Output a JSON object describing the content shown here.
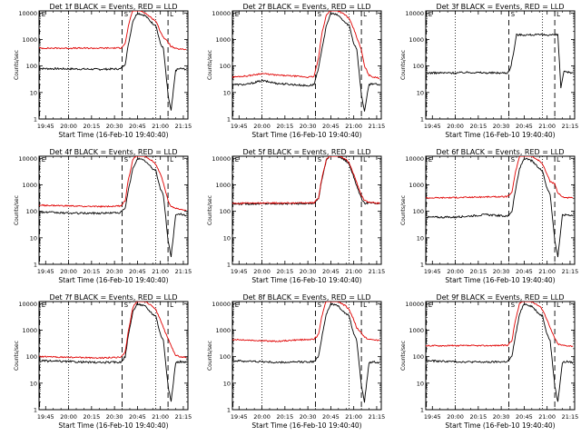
{
  "colors": {
    "events": "#000000",
    "lld": "#e00000",
    "frame": "#000000"
  },
  "chart_data": [
    {
      "type": "line",
      "title": "Det 1f BLACK = Events, RED = LLD",
      "xlabel": "Start Time (16-Feb-10 19:40:40)",
      "ylabel": "Counts/sec",
      "ylog": true,
      "ylim": [
        1,
        12000
      ],
      "xticks": [
        "19:45",
        "20:00",
        "20:15",
        "20:30",
        "20:45",
        "21:00",
        "21:15"
      ],
      "yticks": [
        "1",
        "10",
        "100",
        "1000",
        "10000"
      ],
      "markers": [
        "E",
        "S",
        "L"
      ],
      "series": [
        {
          "name": "BLACK",
          "x": [
            "19:40",
            "20:00",
            "20:20",
            "20:34",
            "20:37",
            "20:39",
            "20:42",
            "20:45",
            "20:50",
            "20:55",
            "20:57",
            "21:00",
            "21:02",
            "21:05",
            "21:07",
            "21:10",
            "21:13",
            "21:17"
          ],
          "y": [
            80,
            78,
            75,
            78,
            120,
            600,
            5000,
            10000,
            8000,
            4000,
            3500,
            700,
            450,
            8,
            2,
            70,
            80,
            75
          ]
        },
        {
          "name": "RED",
          "x": [
            "19:40",
            "20:00",
            "20:20",
            "20:34",
            "20:37",
            "20:39",
            "20:42",
            "20:45",
            "20:50",
            "20:55",
            "20:57",
            "21:00",
            "21:02",
            "21:05",
            "21:07",
            "21:10",
            "21:13",
            "21:17"
          ],
          "y": [
            470,
            470,
            470,
            480,
            700,
            3000,
            14000,
            14000,
            10000,
            6000,
            5000,
            2000,
            1200,
            800,
            550,
            450,
            430,
            420
          ]
        }
      ]
    },
    {
      "type": "line",
      "title": "Det 2f BLACK = Events, RED = LLD",
      "xlabel": "Start Time (16-Feb-10 19:40:40)",
      "ylabel": "Counts/sec",
      "ylog": true,
      "ylim": [
        1,
        12000
      ],
      "xticks": [
        "19:45",
        "20:00",
        "20:15",
        "20:30",
        "20:45",
        "21:00",
        "21:15"
      ],
      "yticks": [
        "1",
        "10",
        "100",
        "1000",
        "10000"
      ],
      "markers": [
        "E",
        "S",
        "L"
      ],
      "series": [
        {
          "name": "BLACK",
          "x": [
            "19:40",
            "19:50",
            "20:00",
            "20:10",
            "20:20",
            "20:30",
            "20:34",
            "20:37",
            "20:39",
            "20:42",
            "20:45",
            "20:50",
            "20:55",
            "20:57",
            "21:00",
            "21:02",
            "21:05",
            "21:07",
            "21:10",
            "21:13",
            "21:17"
          ],
          "y": [
            20,
            20,
            28,
            22,
            20,
            18,
            20,
            80,
            400,
            3000,
            10000,
            8000,
            4000,
            3500,
            700,
            450,
            8,
            2,
            20,
            22,
            18
          ]
        },
        {
          "name": "RED",
          "x": [
            "19:40",
            "19:50",
            "20:00",
            "20:10",
            "20:20",
            "20:30",
            "20:34",
            "20:37",
            "20:39",
            "20:42",
            "20:45",
            "20:50",
            "20:55",
            "20:57",
            "21:00",
            "21:02",
            "21:05",
            "21:07",
            "21:10",
            "21:13",
            "21:17"
          ],
          "y": [
            38,
            42,
            52,
            45,
            42,
            38,
            40,
            200,
            1500,
            8000,
            14000,
            12000,
            8000,
            6000,
            2500,
            1200,
            400,
            100,
            45,
            38,
            35
          ]
        }
      ]
    },
    {
      "type": "line",
      "title": "Det 3f BLACK = Events, RED = LLD",
      "xlabel": "Start Time (16-Feb-10 19:40:40)",
      "ylabel": "Counts/sec",
      "ylog": true,
      "ylim": [
        1,
        12000
      ],
      "xticks": [
        "19:45",
        "20:00",
        "20:15",
        "20:30",
        "20:45",
        "21:00",
        "21:15"
      ],
      "yticks": [
        "1",
        "10",
        "100",
        "1000",
        "10000"
      ],
      "markers": [
        "E",
        "S",
        "L"
      ],
      "series": [
        {
          "name": "BLACK",
          "x": [
            "19:40",
            "20:00",
            "20:10",
            "20:20",
            "20:34",
            "20:36",
            "20:38",
            "20:40",
            "21:07",
            "21:09",
            "21:11",
            "21:17"
          ],
          "y": [
            55,
            55,
            58,
            55,
            55,
            80,
            300,
            1500,
            1500,
            15,
            60,
            55
          ]
        }
      ]
    },
    {
      "type": "line",
      "title": "Det 4f BLACK = Events, RED = LLD",
      "xlabel": "Start Time (16-Feb-10 19:40:40)",
      "ylabel": "Counts/sec",
      "ylog": true,
      "ylim": [
        1,
        12000
      ],
      "xticks": [
        "19:45",
        "20:00",
        "20:15",
        "20:30",
        "20:45",
        "21:00",
        "21:15"
      ],
      "yticks": [
        "1",
        "10",
        "100",
        "1000",
        "10000"
      ],
      "markers": [
        "E",
        "S",
        "L"
      ],
      "series": [
        {
          "name": "BLACK",
          "x": [
            "19:40",
            "20:00",
            "20:20",
            "20:34",
            "20:37",
            "20:39",
            "20:42",
            "20:45",
            "20:50",
            "20:55",
            "20:57",
            "21:00",
            "21:02",
            "21:05",
            "21:07",
            "21:10",
            "21:13",
            "21:17"
          ],
          "y": [
            95,
            85,
            85,
            90,
            130,
            600,
            4000,
            10000,
            8000,
            4000,
            3500,
            700,
            400,
            8,
            2,
            70,
            80,
            70
          ]
        },
        {
          "name": "RED",
          "x": [
            "19:40",
            "20:00",
            "20:20",
            "20:34",
            "20:37",
            "20:39",
            "20:42",
            "20:45",
            "20:50",
            "20:55",
            "20:57",
            "21:00",
            "21:02",
            "21:05",
            "21:07",
            "21:10",
            "21:13",
            "21:17"
          ],
          "y": [
            170,
            160,
            150,
            160,
            250,
            1500,
            9000,
            14000,
            12000,
            8000,
            6000,
            2500,
            1200,
            250,
            150,
            130,
            120,
            110
          ]
        }
      ]
    },
    {
      "type": "line",
      "title": "Det 5f BLACK = Events, RED = LLD",
      "xlabel": "Start Time (16-Feb-10 19:40:40)",
      "ylabel": "Counts/sec",
      "ylog": true,
      "ylim": [
        1,
        12000
      ],
      "xticks": [
        "19:45",
        "20:00",
        "20:15",
        "20:30",
        "20:45",
        "21:00",
        "21:15"
      ],
      "yticks": [
        "1",
        "10",
        "100",
        "1000",
        "10000"
      ],
      "markers": [
        "E",
        "S",
        "L"
      ],
      "series": [
        {
          "name": "BLACK",
          "x": [
            "19:40",
            "20:00",
            "20:20",
            "20:34",
            "20:37",
            "20:39",
            "20:42",
            "20:45",
            "20:50",
            "20:55",
            "20:57",
            "21:00",
            "21:02",
            "21:05",
            "21:07",
            "21:10",
            "21:13",
            "21:17"
          ],
          "y": [
            190,
            195,
            195,
            200,
            300,
            1500,
            8000,
            14000,
            12000,
            8000,
            6000,
            2000,
            900,
            300,
            200,
            210,
            200,
            190
          ]
        },
        {
          "name": "RED",
          "x": [
            "19:40",
            "20:00",
            "20:20",
            "20:34",
            "20:37",
            "20:39",
            "20:42",
            "20:45",
            "20:50",
            "20:55",
            "20:57",
            "21:00",
            "21:02",
            "21:05",
            "21:07",
            "21:10",
            "21:13",
            "21:17"
          ],
          "y": [
            200,
            205,
            205,
            210,
            320,
            1600,
            9000,
            14000,
            13000,
            9000,
            6500,
            2500,
            1200,
            400,
            250,
            220,
            210,
            200
          ]
        }
      ]
    },
    {
      "type": "line",
      "title": "Det 6f BLACK = Events, RED = LLD",
      "xlabel": "Start Time (16-Feb-10 19:40:40)",
      "ylabel": "Counts/sec",
      "ylog": true,
      "ylim": [
        1,
        12000
      ],
      "xticks": [
        "19:45",
        "20:00",
        "20:15",
        "20:30",
        "20:45",
        "21:00",
        "21:15"
      ],
      "yticks": [
        "1",
        "10",
        "100",
        "1000",
        "10000"
      ],
      "markers": [
        "E",
        "S",
        "L"
      ],
      "series": [
        {
          "name": "BLACK",
          "x": [
            "19:40",
            "20:00",
            "20:20",
            "20:34",
            "20:37",
            "20:39",
            "20:42",
            "20:45",
            "20:50",
            "20:55",
            "20:57",
            "21:00",
            "21:02",
            "21:05",
            "21:07",
            "21:10",
            "21:13",
            "21:17"
          ],
          "y": [
            60,
            60,
            75,
            65,
            100,
            500,
            4000,
            10000,
            8000,
            4000,
            3500,
            700,
            450,
            8,
            2,
            70,
            75,
            70
          ]
        },
        {
          "name": "RED",
          "x": [
            "19:40",
            "20:00",
            "20:20",
            "20:34",
            "20:37",
            "20:39",
            "20:42",
            "20:45",
            "20:50",
            "20:55",
            "20:57",
            "21:00",
            "21:02",
            "21:05",
            "21:07",
            "21:10",
            "21:13",
            "21:17"
          ],
          "y": [
            320,
            330,
            350,
            360,
            500,
            2500,
            12000,
            14000,
            12000,
            8000,
            6000,
            2500,
            1300,
            1100,
            500,
            350,
            330,
            320
          ]
        }
      ]
    },
    {
      "type": "line",
      "title": "Det 7f BLACK = Events, RED = LLD",
      "xlabel": "Start Time (16-Feb-10 19:40:40)",
      "ylabel": "Counts/sec",
      "ylog": true,
      "ylim": [
        1,
        12000
      ],
      "xticks": [
        "19:45",
        "20:00",
        "20:15",
        "20:30",
        "20:45",
        "21:00",
        "21:15"
      ],
      "yticks": [
        "1",
        "10",
        "100",
        "1000",
        "10000"
      ],
      "markers": [
        "E",
        "S",
        "L"
      ],
      "series": [
        {
          "name": "BLACK",
          "x": [
            "19:40",
            "20:00",
            "20:20",
            "20:34",
            "20:37",
            "20:39",
            "20:42",
            "20:45",
            "20:50",
            "20:55",
            "20:57",
            "21:00",
            "21:02",
            "21:05",
            "21:07",
            "21:10",
            "21:13",
            "21:17"
          ],
          "y": [
            70,
            65,
            60,
            62,
            100,
            600,
            5000,
            10000,
            8000,
            4000,
            3500,
            700,
            400,
            8,
            2,
            60,
            65,
            60
          ]
        },
        {
          "name": "RED",
          "x": [
            "19:40",
            "20:00",
            "20:20",
            "20:34",
            "20:37",
            "20:39",
            "20:42",
            "20:45",
            "20:50",
            "20:55",
            "20:57",
            "21:00",
            "21:02",
            "21:05",
            "21:07",
            "21:10",
            "21:13",
            "21:17"
          ],
          "y": [
            100,
            95,
            90,
            95,
            150,
            900,
            7000,
            14000,
            12000,
            8000,
            6000,
            2500,
            1200,
            500,
            250,
            110,
            100,
            95
          ]
        }
      ]
    },
    {
      "type": "line",
      "title": "Det 8f BLACK = Events, RED = LLD",
      "xlabel": "Start Time (16-Feb-10 19:40:40)",
      "ylabel": "Counts/sec",
      "ylog": true,
      "ylim": [
        1,
        12000
      ],
      "xticks": [
        "19:45",
        "20:00",
        "20:15",
        "20:30",
        "20:45",
        "21:00",
        "21:15"
      ],
      "yticks": [
        "1",
        "10",
        "100",
        "1000",
        "10000"
      ],
      "markers": [
        "E",
        "S",
        "L"
      ],
      "series": [
        {
          "name": "BLACK",
          "x": [
            "19:40",
            "20:00",
            "20:10",
            "20:20",
            "20:34",
            "20:37",
            "20:39",
            "20:42",
            "20:45",
            "20:50",
            "20:55",
            "20:57",
            "21:00",
            "21:02",
            "21:05",
            "21:07",
            "21:10",
            "21:13",
            "21:17"
          ],
          "y": [
            70,
            65,
            60,
            62,
            65,
            100,
            500,
            4000,
            10000,
            8000,
            4000,
            3500,
            700,
            400,
            8,
            2,
            60,
            65,
            60
          ]
        },
        {
          "name": "RED",
          "x": [
            "19:40",
            "20:00",
            "20:10",
            "20:20",
            "20:34",
            "20:37",
            "20:39",
            "20:42",
            "20:45",
            "20:50",
            "20:55",
            "20:57",
            "21:00",
            "21:02",
            "21:05",
            "21:07",
            "21:10",
            "21:13",
            "21:17"
          ],
          "y": [
            450,
            400,
            380,
            420,
            450,
            700,
            3000,
            14000,
            14000,
            12000,
            8000,
            6000,
            2500,
            1200,
            800,
            550,
            450,
            430,
            420
          ]
        }
      ]
    },
    {
      "type": "line",
      "title": "Det 9f BLACK = Events, RED = LLD",
      "xlabel": "Start Time (16-Feb-10 19:40:40)",
      "ylabel": "Counts/sec",
      "ylog": true,
      "ylim": [
        1,
        12000
      ],
      "xticks": [
        "19:45",
        "20:00",
        "20:15",
        "20:30",
        "20:45",
        "21:00",
        "21:15"
      ],
      "yticks": [
        "1",
        "10",
        "100",
        "1000",
        "10000"
      ],
      "markers": [
        "E",
        "S",
        "L"
      ],
      "series": [
        {
          "name": "BLACK",
          "x": [
            "19:40",
            "20:00",
            "20:20",
            "20:34",
            "20:37",
            "20:39",
            "20:42",
            "20:45",
            "20:50",
            "20:55",
            "20:57",
            "21:00",
            "21:02",
            "21:05",
            "21:07",
            "21:10",
            "21:13",
            "21:17"
          ],
          "y": [
            70,
            65,
            62,
            65,
            100,
            500,
            4000,
            10000,
            8000,
            4000,
            3500,
            700,
            400,
            8,
            2,
            60,
            65,
            60
          ]
        },
        {
          "name": "RED",
          "x": [
            "19:40",
            "20:00",
            "20:20",
            "20:34",
            "20:37",
            "20:39",
            "20:42",
            "20:45",
            "20:50",
            "20:55",
            "20:57",
            "21:00",
            "21:02",
            "21:05",
            "21:07",
            "21:10",
            "21:13",
            "21:17"
          ],
          "y": [
            260,
            260,
            260,
            270,
            400,
            2000,
            10000,
            14000,
            12000,
            8000,
            6000,
            2500,
            1200,
            500,
            300,
            270,
            260,
            250
          ]
        }
      ]
    }
  ]
}
